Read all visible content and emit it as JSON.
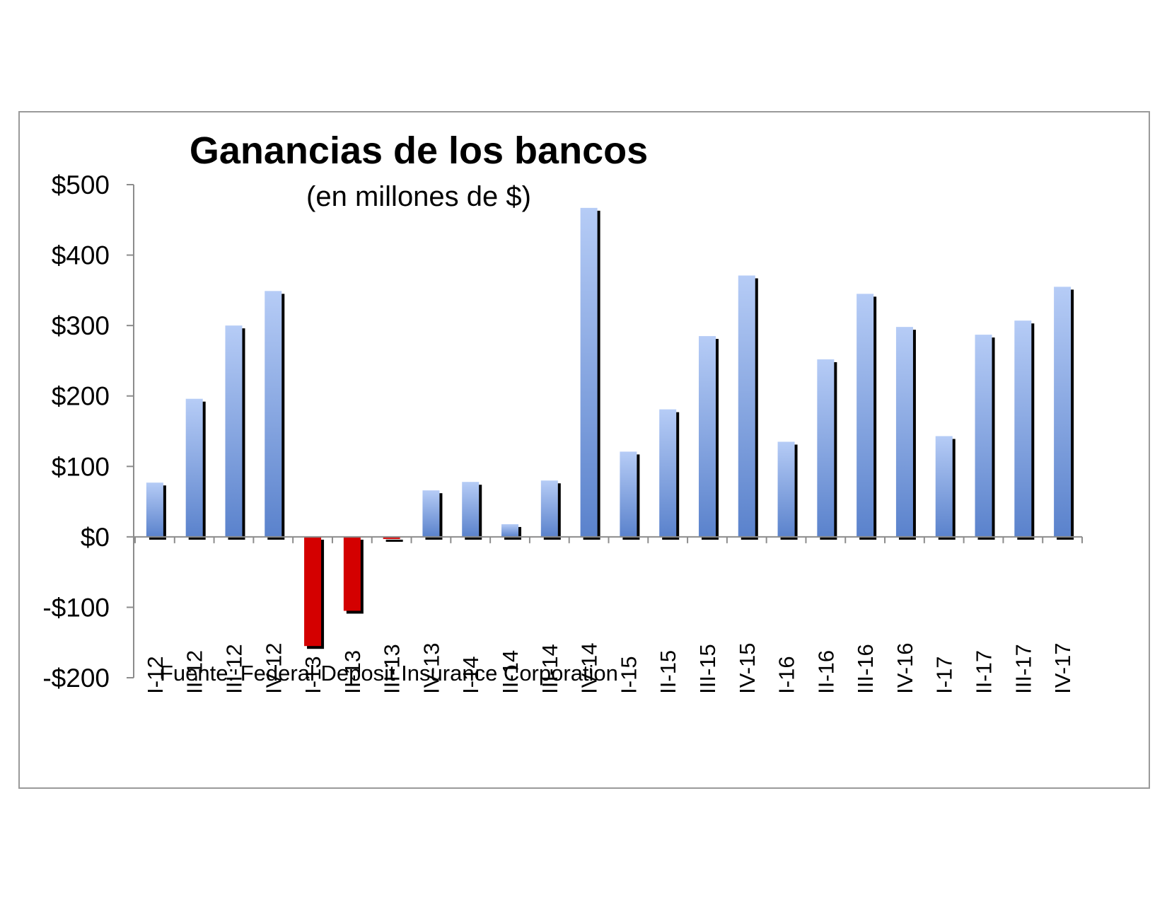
{
  "chart_data": {
    "type": "bar",
    "title": "Ganancias de los bancos",
    "subtitle": "(en millones de $)",
    "source": "Fuente: Federal Deposit Insurance Corporation",
    "categories": [
      "I-12",
      "II-12",
      "III-12",
      "IV-12",
      "I-13",
      "II-13",
      "III-13",
      "IV-13",
      "I-14",
      "II-14",
      "III-14",
      "IV-14",
      "I-15",
      "II-15",
      "III-15",
      "IV-15",
      "I-16",
      "II-16",
      "III-16",
      "IV-16",
      "I-17",
      "II-17",
      "III-17",
      "IV-17"
    ],
    "values": [
      77,
      196,
      300,
      349,
      -155,
      -105,
      -3,
      66,
      78,
      18,
      80,
      467,
      121,
      181,
      285,
      371,
      135,
      252,
      345,
      298,
      143,
      287,
      307,
      355
    ],
    "ylim": [
      -200,
      500
    ],
    "yticks": [
      500,
      400,
      300,
      200,
      100,
      0,
      -100,
      -200
    ],
    "ytick_labels": [
      "$500",
      "$400",
      "$300",
      "$200",
      "$100",
      "$0",
      "-$100",
      "-$200"
    ],
    "xlabel": "",
    "ylabel": "",
    "grid": false,
    "colors": {
      "positive_top": "#b6ccf6",
      "positive_bottom": "#5a82cc",
      "negative": "#d40000",
      "shadow": "#000000",
      "axis": "#8c8c8c"
    }
  }
}
